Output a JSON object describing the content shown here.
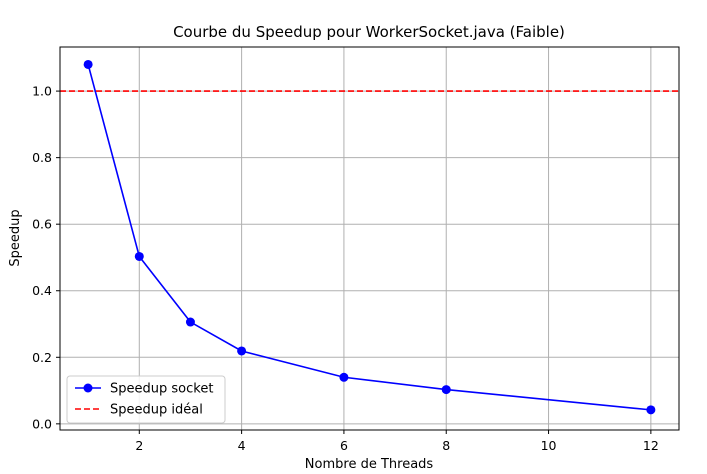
{
  "chart_data": {
    "type": "line",
    "title": "Courbe du Speedup pour WorkerSocket.java (Faible)",
    "xlabel": "Nombre de Threads",
    "ylabel": "Speedup",
    "xlim": [
      0.45,
      12.55
    ],
    "ylim": [
      -0.0185,
      1.1325
    ],
    "xticks": [
      2,
      4,
      6,
      8,
      10,
      12
    ],
    "yticks": [
      0.0,
      0.2,
      0.4,
      0.6,
      0.8,
      1.0
    ],
    "ytick_labels": [
      "0.0",
      "0.2",
      "0.4",
      "0.6",
      "0.8",
      "1.0"
    ],
    "grid": true,
    "legend_position": "lower-left",
    "series": [
      {
        "name": "Speedup socket",
        "color": "#0000ff",
        "style": "solid",
        "marker": "circle",
        "x": [
          1,
          2,
          3,
          4,
          6,
          8,
          12
        ],
        "y": [
          1.08,
          0.503,
          0.306,
          0.219,
          0.14,
          0.103,
          0.042
        ]
      },
      {
        "name": "Speedup idéal",
        "color": "#ff0000",
        "style": "dashed",
        "type": "hline",
        "y": 1.0
      }
    ]
  }
}
